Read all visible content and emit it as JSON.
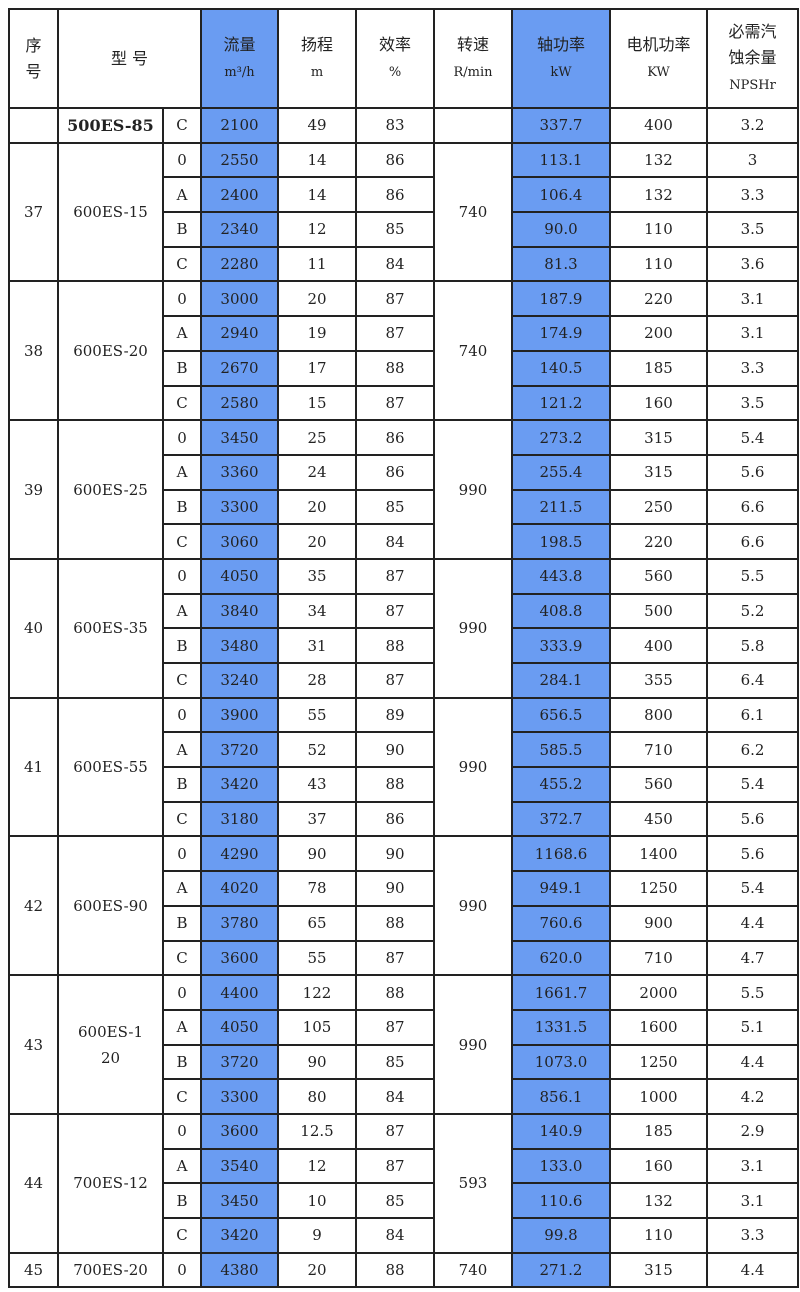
{
  "colors": {
    "highlight": "#6a9cf2",
    "border": "#222222"
  },
  "header": {
    "seq": [
      "序",
      "号"
    ],
    "model": "型 号",
    "flow": {
      "label": "流量",
      "unit": "m³/h"
    },
    "head": {
      "label": "扬程",
      "unit": "m"
    },
    "efficiency": {
      "label": "效率",
      "unit": "%"
    },
    "speed": {
      "label": "转速",
      "unit": "R/min"
    },
    "shaft_power": {
      "label": "轴功率",
      "unit": "kW"
    },
    "motor_power": {
      "label": "电机功率",
      "unit": "KW"
    },
    "npsh": {
      "label": [
        "必需汽",
        "蚀余量"
      ],
      "unit": "NPSHr"
    }
  },
  "groups": [
    {
      "seq": "",
      "model": "500ES-85",
      "speed": "",
      "bold": true,
      "rows": [
        [
          "C",
          "2100",
          "49",
          "83",
          "337.7",
          "400",
          "3.2"
        ]
      ]
    },
    {
      "seq": "37",
      "model": "600ES-15",
      "speed": "740",
      "rows": [
        [
          "0",
          "2550",
          "14",
          "86",
          "113.1",
          "132",
          "3"
        ],
        [
          "A",
          "2400",
          "14",
          "86",
          "106.4",
          "132",
          "3.3"
        ],
        [
          "B",
          "2340",
          "12",
          "85",
          "90.0",
          "110",
          "3.5"
        ],
        [
          "C",
          "2280",
          "11",
          "84",
          "81.3",
          "110",
          "3.6"
        ]
      ]
    },
    {
      "seq": "38",
      "model": "600ES-20",
      "speed": "740",
      "rows": [
        [
          "0",
          "3000",
          "20",
          "87",
          "187.9",
          "220",
          "3.1"
        ],
        [
          "A",
          "2940",
          "19",
          "87",
          "174.9",
          "200",
          "3.1"
        ],
        [
          "B",
          "2670",
          "17",
          "88",
          "140.5",
          "185",
          "3.3"
        ],
        [
          "C",
          "2580",
          "15",
          "87",
          "121.2",
          "160",
          "3.5"
        ]
      ]
    },
    {
      "seq": "39",
      "model": "600ES-25",
      "speed": "990",
      "rows": [
        [
          "0",
          "3450",
          "25",
          "86",
          "273.2",
          "315",
          "5.4"
        ],
        [
          "A",
          "3360",
          "24",
          "86",
          "255.4",
          "315",
          "5.6"
        ],
        [
          "B",
          "3300",
          "20",
          "85",
          "211.5",
          "250",
          "6.6"
        ],
        [
          "C",
          "3060",
          "20",
          "84",
          "198.5",
          "220",
          "6.6"
        ]
      ]
    },
    {
      "seq": "40",
      "model": "600ES-35",
      "speed": "990",
      "rows": [
        [
          "0",
          "4050",
          "35",
          "87",
          "443.8",
          "560",
          "5.5"
        ],
        [
          "A",
          "3840",
          "34",
          "87",
          "408.8",
          "500",
          "5.2"
        ],
        [
          "B",
          "3480",
          "31",
          "88",
          "333.9",
          "400",
          "5.8"
        ],
        [
          "C",
          "3240",
          "28",
          "87",
          "284.1",
          "355",
          "6.4"
        ]
      ]
    },
    {
      "seq": "41",
      "model": "600ES-55",
      "speed": "990",
      "rows": [
        [
          "0",
          "3900",
          "55",
          "89",
          "656.5",
          "800",
          "6.1"
        ],
        [
          "A",
          "3720",
          "52",
          "90",
          "585.5",
          "710",
          "6.2"
        ],
        [
          "B",
          "3420",
          "43",
          "88",
          "455.2",
          "560",
          "5.4"
        ],
        [
          "C",
          "3180",
          "37",
          "86",
          "372.7",
          "450",
          "5.6"
        ]
      ]
    },
    {
      "seq": "42",
      "model": "600ES-90",
      "speed": "990",
      "rows": [
        [
          "0",
          "4290",
          "90",
          "90",
          "1168.6",
          "1400",
          "5.6"
        ],
        [
          "A",
          "4020",
          "78",
          "90",
          "949.1",
          "1250",
          "5.4"
        ],
        [
          "B",
          "3780",
          "65",
          "88",
          "760.6",
          "900",
          "4.4"
        ],
        [
          "C",
          "3600",
          "55",
          "87",
          "620.0",
          "710",
          "4.7"
        ]
      ]
    },
    {
      "seq": "43",
      "model": "600ES-120",
      "speed": "990",
      "rows": [
        [
          "0",
          "4400",
          "122",
          "88",
          "1661.7",
          "2000",
          "5.5"
        ],
        [
          "A",
          "4050",
          "105",
          "87",
          "1331.5",
          "1600",
          "5.1"
        ],
        [
          "B",
          "3720",
          "90",
          "85",
          "1073.0",
          "1250",
          "4.4"
        ],
        [
          "C",
          "3300",
          "80",
          "84",
          "856.1",
          "1000",
          "4.2"
        ]
      ]
    },
    {
      "seq": "44",
      "model": "700ES-12",
      "speed": "593",
      "rows": [
        [
          "0",
          "3600",
          "12.5",
          "87",
          "140.9",
          "185",
          "2.9"
        ],
        [
          "A",
          "3540",
          "12",
          "87",
          "133.0",
          "160",
          "3.1"
        ],
        [
          "B",
          "3450",
          "10",
          "85",
          "110.6",
          "132",
          "3.1"
        ],
        [
          "C",
          "3420",
          "9",
          "84",
          "99.8",
          "110",
          "3.3"
        ]
      ]
    },
    {
      "seq": "45",
      "model": "700ES-20",
      "speed": "740",
      "rows": [
        [
          "0",
          "4380",
          "20",
          "88",
          "271.2",
          "315",
          "4.4"
        ]
      ]
    }
  ]
}
